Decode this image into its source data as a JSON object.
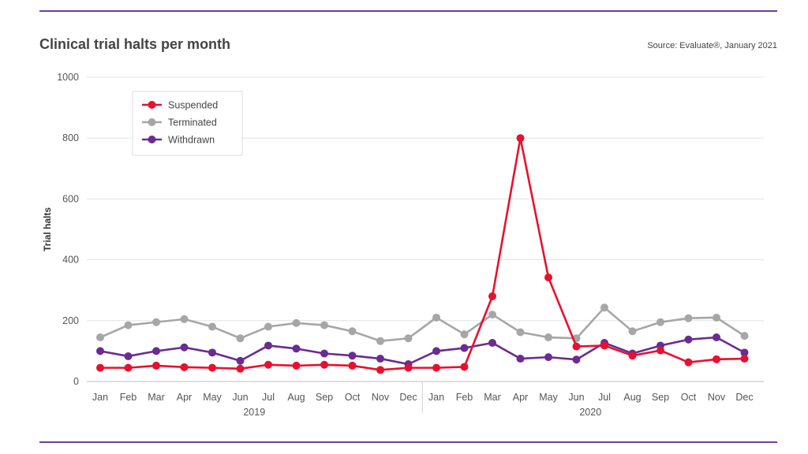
{
  "header": {
    "title": "Clinical trial halts per month",
    "source": "Source: Evaluate®, January 2021"
  },
  "chart_data": {
    "type": "line",
    "title": "Clinical trial halts per month",
    "xlabel": "",
    "ylabel": "Trial halts",
    "ylim": [
      0,
      1000
    ],
    "yticks": [
      0,
      200,
      400,
      600,
      800,
      1000
    ],
    "grid": true,
    "legend_position": "top-left",
    "categories": [
      "Jan",
      "Feb",
      "Mar",
      "Apr",
      "May",
      "Jun",
      "Jul",
      "Aug",
      "Sep",
      "Oct",
      "Nov",
      "Dec",
      "Jan",
      "Feb",
      "Mar",
      "Apr",
      "May",
      "Jun",
      "Jul",
      "Aug",
      "Sep",
      "Oct",
      "Nov",
      "Dec"
    ],
    "groups": [
      {
        "label": "2019",
        "start": 0,
        "end": 11
      },
      {
        "label": "2020",
        "start": 12,
        "end": 23
      }
    ],
    "series": [
      {
        "name": "Suspended",
        "color": "#e8102e",
        "values": [
          45,
          45,
          52,
          47,
          45,
          42,
          55,
          52,
          55,
          52,
          38,
          45,
          45,
          48,
          280,
          800,
          342,
          115,
          118,
          85,
          102,
          63,
          73,
          75
        ]
      },
      {
        "name": "Terminated",
        "color": "#a6a6a6",
        "values": [
          145,
          185,
          195,
          205,
          180,
          142,
          180,
          192,
          185,
          165,
          133,
          142,
          210,
          155,
          220,
          162,
          145,
          142,
          243,
          165,
          195,
          208,
          210,
          150
        ]
      },
      {
        "name": "Withdrawn",
        "color": "#6a2c91",
        "values": [
          100,
          83,
          100,
          112,
          95,
          68,
          118,
          108,
          92,
          85,
          75,
          57,
          100,
          110,
          127,
          75,
          80,
          72,
          127,
          92,
          118,
          138,
          145,
          95
        ]
      }
    ]
  }
}
